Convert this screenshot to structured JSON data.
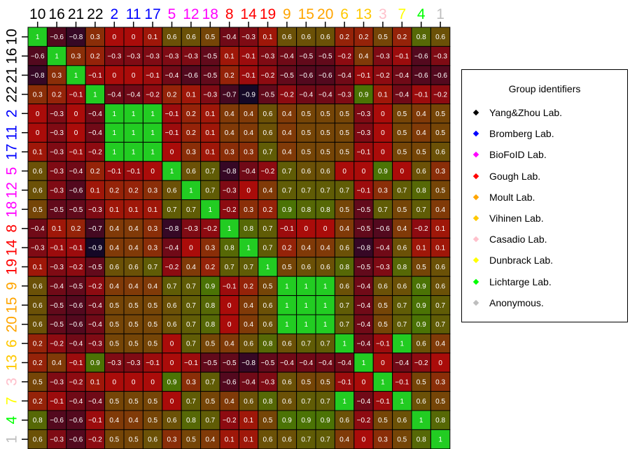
{
  "chart_data": {
    "type": "heatmap",
    "title": "",
    "labels": [
      "10",
      "16",
      "21",
      "22",
      "2",
      "11",
      "17",
      "5",
      "12",
      "18",
      "8",
      "14",
      "19",
      "9",
      "15",
      "20",
      "6",
      "13",
      "3",
      "7",
      "4",
      "1"
    ],
    "label_colors": [
      "#000000",
      "#000000",
      "#000000",
      "#000000",
      "#0000ff",
      "#0000ff",
      "#0000ff",
      "#ff00ff",
      "#ff00ff",
      "#ff00ff",
      "#ff0000",
      "#ff0000",
      "#ff0000",
      "#ffa500",
      "#ffa500",
      "#ffa500",
      "#ffc800",
      "#ffc800",
      "#ffc0cb",
      "#ffff00",
      "#00ff00",
      "#bebebe"
    ],
    "values": [
      [
        1,
        -0.6,
        -0.8,
        0.3,
        0,
        0,
        0.1,
        0.6,
        0.6,
        0.5,
        -0.4,
        -0.3,
        0.1,
        0.6,
        0.6,
        0.6,
        0.2,
        0.2,
        0.5,
        0.2,
        0.8,
        0.6
      ],
      [
        -0.6,
        1,
        0.3,
        0.2,
        -0.3,
        -0.3,
        -0.3,
        -0.3,
        -0.3,
        -0.5,
        0.1,
        -0.1,
        -0.3,
        -0.4,
        -0.5,
        -0.5,
        -0.2,
        0.4,
        -0.3,
        -0.1,
        -0.6,
        -0.3
      ],
      [
        -0.8,
        0.3,
        1,
        -0.1,
        0,
        0,
        -0.1,
        -0.4,
        -0.6,
        -0.5,
        0.2,
        -0.1,
        -0.2,
        -0.5,
        -0.6,
        -0.6,
        -0.4,
        -0.1,
        -0.2,
        -0.4,
        -0.6,
        -0.6
      ],
      [
        0.3,
        0.2,
        -0.1,
        1,
        -0.4,
        -0.4,
        -0.2,
        0.2,
        0.1,
        -0.3,
        -0.7,
        -0.9,
        -0.5,
        -0.2,
        -0.4,
        -0.4,
        -0.3,
        0.9,
        0.1,
        -0.4,
        -0.1,
        -0.2
      ],
      [
        0,
        -0.3,
        0,
        -0.4,
        1,
        1,
        1,
        -0.1,
        0.2,
        0.1,
        0.4,
        0.4,
        0.6,
        0.4,
        0.5,
        0.5,
        0.5,
        -0.3,
        0,
        0.5,
        0.4,
        0.5
      ],
      [
        0,
        -0.3,
        0,
        -0.4,
        1,
        1,
        1,
        -0.1,
        0.2,
        0.1,
        0.4,
        0.4,
        0.6,
        0.4,
        0.5,
        0.5,
        0.5,
        -0.3,
        0,
        0.5,
        0.4,
        0.5
      ],
      [
        0.1,
        -0.3,
        -0.1,
        -0.2,
        1,
        1,
        1,
        0,
        0.3,
        0.1,
        0.3,
        0.3,
        0.7,
        0.4,
        0.5,
        0.5,
        0.5,
        -0.1,
        0,
        0.5,
        0.5,
        0.6
      ],
      [
        0.6,
        -0.3,
        -0.4,
        0.2,
        -0.1,
        -0.1,
        0,
        1,
        0.6,
        0.7,
        -0.8,
        -0.4,
        -0.2,
        0.7,
        0.6,
        0.6,
        0,
        0,
        0.9,
        0,
        0.6,
        0.3
      ],
      [
        0.6,
        -0.3,
        -0.6,
        0.1,
        0.2,
        0.2,
        0.3,
        0.6,
        1,
        0.7,
        -0.3,
        0,
        0.4,
        0.7,
        0.7,
        0.7,
        0.7,
        -0.1,
        0.3,
        0.7,
        0.8,
        0.5
      ],
      [
        0.5,
        -0.5,
        -0.5,
        -0.3,
        0.1,
        0.1,
        0.1,
        0.7,
        0.7,
        1,
        -0.2,
        0.3,
        0.2,
        0.9,
        0.8,
        0.8,
        0.5,
        -0.5,
        0.7,
        0.5,
        0.7,
        0.4
      ],
      [
        -0.4,
        0.1,
        0.2,
        -0.7,
        0.4,
        0.4,
        0.3,
        -0.8,
        -0.3,
        -0.2,
        1,
        0.8,
        0.7,
        -0.1,
        0,
        0,
        0.4,
        -0.5,
        -0.6,
        0.4,
        -0.2,
        0.1
      ],
      [
        -0.3,
        -0.1,
        -0.1,
        -0.9,
        0.4,
        0.4,
        0.3,
        -0.4,
        0,
        0.3,
        0.8,
        1,
        0.7,
        0.2,
        0.4,
        0.4,
        0.6,
        -0.8,
        -0.4,
        0.6,
        0.1,
        0.1
      ],
      [
        0.1,
        -0.3,
        -0.2,
        -0.5,
        0.6,
        0.6,
        0.7,
        -0.2,
        0.4,
        0.2,
        0.7,
        0.7,
        1,
        0.5,
        0.6,
        0.6,
        0.8,
        -0.5,
        -0.3,
        0.8,
        0.5,
        0.6
      ],
      [
        0.6,
        -0.4,
        -0.5,
        -0.2,
        0.4,
        0.4,
        0.4,
        0.7,
        0.7,
        0.9,
        -0.1,
        0.2,
        0.5,
        1,
        1,
        1,
        0.6,
        -0.4,
        0.6,
        0.6,
        0.9,
        0.6
      ],
      [
        0.6,
        -0.5,
        -0.6,
        -0.4,
        0.5,
        0.5,
        0.5,
        0.6,
        0.7,
        0.8,
        0,
        0.4,
        0.6,
        1,
        1,
        1,
        0.7,
        -0.4,
        0.5,
        0.7,
        0.9,
        0.7
      ],
      [
        0.6,
        -0.5,
        -0.6,
        -0.4,
        0.5,
        0.5,
        0.5,
        0.6,
        0.7,
        0.8,
        0,
        0.4,
        0.6,
        1,
        1,
        1,
        0.7,
        -0.4,
        0.5,
        0.7,
        0.9,
        0.7
      ],
      [
        0.2,
        -0.2,
        -0.4,
        -0.3,
        0.5,
        0.5,
        0.5,
        0,
        0.7,
        0.5,
        0.4,
        0.6,
        0.8,
        0.6,
        0.7,
        0.7,
        1,
        -0.4,
        -0.1,
        1,
        0.6,
        0.4
      ],
      [
        0.2,
        0.4,
        -0.1,
        0.9,
        -0.3,
        -0.3,
        -0.1,
        0,
        -0.1,
        -0.5,
        -0.5,
        -0.8,
        -0.5,
        -0.4,
        -0.4,
        -0.4,
        -0.4,
        1,
        0,
        -0.4,
        -0.2,
        0
      ],
      [
        0.5,
        -0.3,
        -0.2,
        0.1,
        0,
        0,
        0,
        0.9,
        0.3,
        0.7,
        -0.6,
        -0.4,
        -0.3,
        0.6,
        0.5,
        0.5,
        -0.1,
        0,
        1,
        -0.1,
        0.5,
        0.3
      ],
      [
        0.2,
        -0.1,
        -0.4,
        -0.4,
        0.5,
        0.5,
        0.5,
        0,
        0.7,
        0.5,
        0.4,
        0.6,
        0.8,
        0.6,
        0.7,
        0.7,
        1,
        -0.4,
        -0.1,
        1,
        0.6,
        0.5
      ],
      [
        0.8,
        -0.6,
        -0.6,
        -0.1,
        0.4,
        0.4,
        0.5,
        0.6,
        0.8,
        0.7,
        -0.2,
        0.1,
        0.5,
        0.9,
        0.9,
        0.9,
        0.6,
        -0.2,
        0.5,
        0.6,
        1,
        0.8
      ],
      [
        0.6,
        -0.3,
        -0.6,
        -0.2,
        0.5,
        0.5,
        0.6,
        0.3,
        0.5,
        0.4,
        0.1,
        0.1,
        0.6,
        0.6,
        0.7,
        0.7,
        0.4,
        0,
        0.3,
        0.5,
        0.8,
        1
      ]
    ],
    "legend": {
      "title": "Group identifiers",
      "placement": "right",
      "entries": [
        {
          "label": "Yang&Zhou Lab.",
          "color": "#000000"
        },
        {
          "label": "Bromberg Lab.",
          "color": "#0000ff"
        },
        {
          "label": "BioFoID Lab.",
          "color": "#ff00ff"
        },
        {
          "label": "Gough Lab.",
          "color": "#ff0000"
        },
        {
          "label": "Moult Lab.",
          "color": "#ffa500"
        },
        {
          "label": "Vihinen Lab.",
          "color": "#ffc800"
        },
        {
          "label": "Casadio Lab.",
          "color": "#ffc0cb"
        },
        {
          "label": "Dunbrack Lab.",
          "color": "#ffff00"
        },
        {
          "label": "Lichtarge Lab.",
          "color": "#00ff00"
        },
        {
          "label": "Anonymous.",
          "color": "#bebebe"
        }
      ]
    }
  }
}
